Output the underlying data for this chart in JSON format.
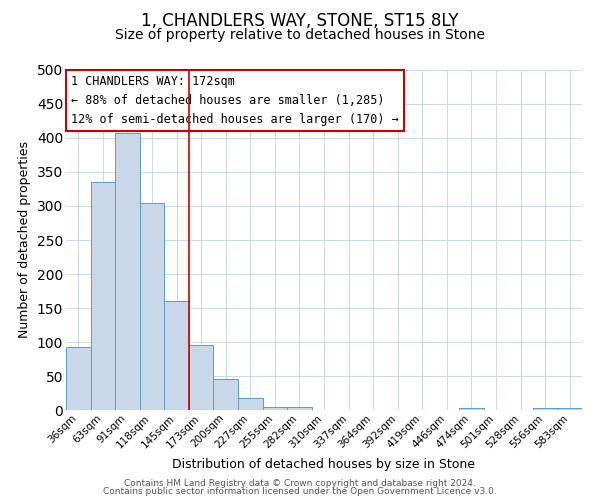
{
  "title": "1, CHANDLERS WAY, STONE, ST15 8LY",
  "subtitle": "Size of property relative to detached houses in Stone",
  "xlabel": "Distribution of detached houses by size in Stone",
  "ylabel": "Number of detached properties",
  "bar_labels": [
    "36sqm",
    "63sqm",
    "91sqm",
    "118sqm",
    "145sqm",
    "173sqm",
    "200sqm",
    "227sqm",
    "255sqm",
    "282sqm",
    "310sqm",
    "337sqm",
    "364sqm",
    "392sqm",
    "419sqm",
    "446sqm",
    "474sqm",
    "501sqm",
    "528sqm",
    "556sqm",
    "583sqm"
  ],
  "bar_values": [
    93,
    335,
    408,
    305,
    160,
    95,
    45,
    18,
    4,
    4,
    0,
    0,
    0,
    0,
    0,
    0,
    3,
    0,
    0,
    3,
    3
  ],
  "bar_color": "#c8d8e8",
  "bar_edge_color": "#5a9dc8",
  "vline_x_index": 5,
  "vline_color": "#cc0000",
  "annotation_lines": [
    "1 CHANDLERS WAY: 172sqm",
    "← 88% of detached houses are smaller (1,285)",
    "12% of semi-detached houses are larger (170) →"
  ],
  "annotation_box_color": "#cc0000",
  "ylim": [
    0,
    500
  ],
  "yticks": [
    0,
    50,
    100,
    150,
    200,
    250,
    300,
    350,
    400,
    450,
    500
  ],
  "grid_color": "#ccd8e4",
  "footer1": "Contains HM Land Registry data © Crown copyright and database right 2024.",
  "footer2": "Contains public sector information licensed under the Open Government Licence v3.0.",
  "title_fontsize": 12,
  "subtitle_fontsize": 10,
  "xlabel_fontsize": 9,
  "ylabel_fontsize": 9,
  "tick_fontsize": 7.5,
  "annotation_fontsize": 8.5,
  "footer_fontsize": 6.5,
  "bg_color": "#f0f4f8"
}
